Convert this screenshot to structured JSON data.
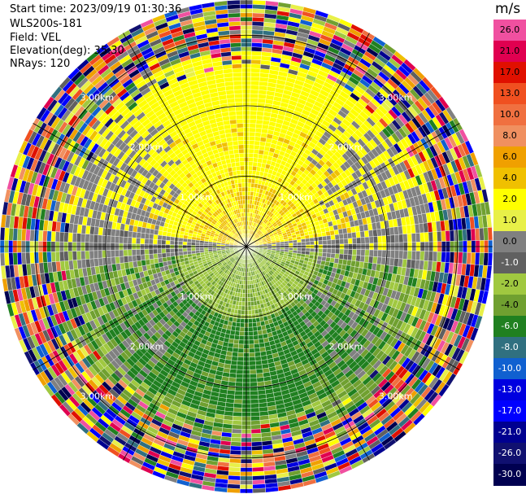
{
  "header": {
    "start_time": "Start time: 2023/09/19 01:30:36",
    "instrument": "WLS200s-181",
    "field": "Field: VEL",
    "elevation": "Elevation(deg): 35.30",
    "nrays": "NRays: 120"
  },
  "colorbar": {
    "unit": "m/s",
    "levels": [
      {
        "label": "26.0",
        "color": "#f050a0"
      },
      {
        "label": "21.0",
        "color": "#e00050"
      },
      {
        "label": "17.0",
        "color": "#e01000"
      },
      {
        "label": "13.0",
        "color": "#f05020"
      },
      {
        "label": "10.0",
        "color": "#f07040"
      },
      {
        "label": "8.0",
        "color": "#f09060"
      },
      {
        "label": "6.0",
        "color": "#f0a000"
      },
      {
        "label": "4.0",
        "color": "#f0c000"
      },
      {
        "label": "2.0",
        "color": "#ffff00"
      },
      {
        "label": "1.0",
        "color": "#e8f048"
      },
      {
        "label": "0.0",
        "color": "#808080"
      },
      {
        "label": "-1.0",
        "color": "#606060"
      },
      {
        "label": "-2.0",
        "color": "#a0c840"
      },
      {
        "label": "-4.0",
        "color": "#70a030"
      },
      {
        "label": "-6.0",
        "color": "#208020"
      },
      {
        "label": "-8.0",
        "color": "#307080"
      },
      {
        "label": "-10.0",
        "color": "#1060d0"
      },
      {
        "label": "-13.0",
        "color": "#0000e0"
      },
      {
        "label": "-17.0",
        "color": "#0000ff"
      },
      {
        "label": "-21.0",
        "color": "#000090"
      },
      {
        "label": "-26.0",
        "color": "#101070"
      },
      {
        "label": "-30.0",
        "color": "#000050"
      }
    ]
  },
  "chart_data": {
    "type": "heatmap",
    "projection": "polar-ppi",
    "field": "VEL",
    "unit": "m/s",
    "nrays": 120,
    "range_rings_km": [
      1.0,
      2.0,
      3.0
    ],
    "ring_labels": [
      "1.00km",
      "2.00km",
      "3.00km"
    ],
    "max_range_km": 3.5,
    "spokes_deg": [
      0,
      30,
      60,
      90,
      120,
      150,
      180,
      210,
      240,
      270,
      300,
      330
    ],
    "pattern_by_range": [
      {
        "range_km": [
          0.0,
          1.0
        ],
        "north_half": "2.0 to 4.0 (yellow/orange)",
        "south_half": "-2.0 to -4.0 (green)"
      },
      {
        "range_km": [
          1.0,
          2.0
        ],
        "north_half": "2.0 (yellow)",
        "south_half": "-4.0 to -6.0 (green)",
        "east_west": "0.0 (gray)"
      },
      {
        "range_km": [
          2.0,
          2.7
        ],
        "north_half": "2.0 (yellow), gray flanks",
        "south_half": "-2.0 to -6.0 (green)"
      },
      {
        "range_km": [
          2.7,
          3.5
        ],
        "all": "noise, all values"
      }
    ],
    "grid": true
  }
}
